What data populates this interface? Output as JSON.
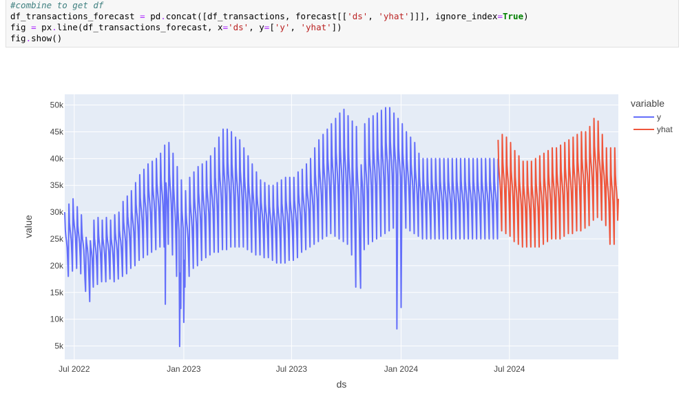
{
  "code_cell": {
    "lines": [
      [
        {
          "t": "#combine to get df",
          "c": "comment"
        }
      ],
      [
        {
          "t": "df_transactions_forecast ",
          "c": "plain"
        },
        {
          "t": "=",
          "c": "op"
        },
        {
          "t": " pd",
          "c": "plain"
        },
        {
          "t": ".",
          "c": "op"
        },
        {
          "t": "concat([df_transactions, forecast[[",
          "c": "plain"
        },
        {
          "t": "'ds'",
          "c": "str"
        },
        {
          "t": ", ",
          "c": "plain"
        },
        {
          "t": "'yhat'",
          "c": "str"
        },
        {
          "t": "]]], ignore_index",
          "c": "plain"
        },
        {
          "t": "=",
          "c": "op"
        },
        {
          "t": "True",
          "c": "kw"
        },
        {
          "t": ")",
          "c": "plain"
        }
      ],
      [
        {
          "t": "fig ",
          "c": "plain"
        },
        {
          "t": "=",
          "c": "op"
        },
        {
          "t": " px",
          "c": "plain"
        },
        {
          "t": ".",
          "c": "op"
        },
        {
          "t": "line(df_transactions_forecast, x",
          "c": "plain"
        },
        {
          "t": "=",
          "c": "op"
        },
        {
          "t": "'ds'",
          "c": "str"
        },
        {
          "t": ", y",
          "c": "plain"
        },
        {
          "t": "=",
          "c": "op"
        },
        {
          "t": "[",
          "c": "plain"
        },
        {
          "t": "'y'",
          "c": "str"
        },
        {
          "t": ", ",
          "c": "plain"
        },
        {
          "t": "'yhat'",
          "c": "str"
        },
        {
          "t": "])",
          "c": "plain"
        }
      ],
      [
        {
          "t": "fig",
          "c": "plain"
        },
        {
          "t": ".",
          "c": "op"
        },
        {
          "t": "show()",
          "c": "plain"
        }
      ]
    ]
  },
  "chart_data": {
    "type": "line",
    "xlabel": "ds",
    "ylabel": "value",
    "x_ticks": [
      "Jul 2022",
      "Jan 2023",
      "Jul 2023",
      "Jan 2024",
      "Jul 2024"
    ],
    "y_ticks": [
      "5k",
      "10k",
      "15k",
      "20k",
      "25k",
      "30k",
      "35k",
      "40k",
      "45k",
      "50k"
    ],
    "ylim": [
      2500,
      52000
    ],
    "xlim": [
      "2022-06-15",
      "2024-12-31"
    ],
    "grid": true,
    "legend": {
      "title": "variable",
      "placement": "right"
    },
    "background": "#e5ecf6",
    "series": [
      {
        "name": "y",
        "color": "#636efa",
        "x_range": [
          "2022-06-15",
          "2024-06-12"
        ],
        "weekly_peaks": [
          30000,
          31500,
          32500,
          31000,
          29500,
          28500,
          28000,
          28500,
          29000,
          28500,
          29000,
          28500,
          29500,
          30000,
          32000,
          33000,
          34000,
          35500,
          37000,
          38000,
          39000,
          39500,
          40000,
          41000,
          42500,
          43000,
          41000,
          38500,
          36000,
          34000,
          36500,
          37500,
          38500,
          39000,
          39500,
          40500,
          42000,
          44000,
          45500,
          45500,
          45000,
          44000,
          43500,
          42000,
          40500,
          39000,
          37500,
          36000,
          35500,
          35000,
          35000,
          35500,
          36000,
          36500,
          36500,
          36500,
          37500,
          38000,
          39000,
          40000,
          42000,
          43500,
          44500,
          45500,
          46500,
          47500,
          48500,
          49200,
          48000,
          47000,
          46000,
          45000,
          46500,
          47500,
          48000,
          48500,
          49000,
          49500,
          49500,
          48500,
          47500,
          46500,
          45000,
          44000,
          43000,
          41000,
          40000
        ],
        "weekly_troughs": [
          18000,
          19000,
          19500,
          18500,
          17500,
          17000,
          16000,
          16500,
          17000,
          17000,
          17500,
          17000,
          17500,
          18000,
          18500,
          19500,
          20000,
          21000,
          21500,
          22000,
          22500,
          23000,
          23500,
          23500,
          24000,
          22000,
          18000,
          12000,
          16000,
          18000,
          19500,
          20000,
          21000,
          21500,
          22000,
          22500,
          22500,
          23000,
          23000,
          23500,
          23500,
          23500,
          23500,
          23000,
          22500,
          22000,
          22000,
          21500,
          21500,
          21000,
          20500,
          20500,
          20500,
          21000,
          21000,
          21500,
          22500,
          23000,
          23500,
          24000,
          24500,
          25000,
          25500,
          26000,
          25500,
          25000,
          24500,
          24000,
          22000,
          16000,
          20000,
          23000,
          24000,
          24500,
          25000,
          25500,
          26000,
          26500,
          27000,
          27500,
          27500,
          27000,
          26500,
          26000,
          25500,
          25000,
          25000
        ],
        "notable_dips": [
          {
            "date": "2022-07-20",
            "value": 15200
          },
          {
            "date": "2022-07-27",
            "value": 13300
          },
          {
            "date": "2022-12-01",
            "value": 12800
          },
          {
            "date": "2022-12-25",
            "value": 4900
          },
          {
            "date": "2023-01-01",
            "value": 9400
          },
          {
            "date": "2023-10-25",
            "value": 15800
          },
          {
            "date": "2023-12-25",
            "value": 8200
          },
          {
            "date": "2024-01-01",
            "value": 12200
          }
        ]
      },
      {
        "name": "yhat",
        "color": "#ef553b",
        "x_range": [
          "2024-06-12",
          "2024-12-31"
        ],
        "weekly_peaks": [
          43500,
          44500,
          44000,
          43000,
          41500,
          40500,
          39500,
          39500,
          39500,
          40000,
          40500,
          41000,
          41500,
          42000,
          42000,
          42500,
          43000,
          43500,
          44000,
          44500,
          45000,
          45000,
          46000,
          47500,
          47000,
          44500,
          42000
        ],
        "weekly_troughs": [
          26500,
          26000,
          25500,
          24500,
          24000,
          23500,
          23500,
          23500,
          23500,
          23500,
          24000,
          24500,
          25000,
          25000,
          25000,
          25500,
          26000,
          26000,
          26500,
          26500,
          27000,
          27500,
          28500,
          29000,
          28500,
          27500,
          24000
        ],
        "end_value": 32500
      }
    ]
  }
}
